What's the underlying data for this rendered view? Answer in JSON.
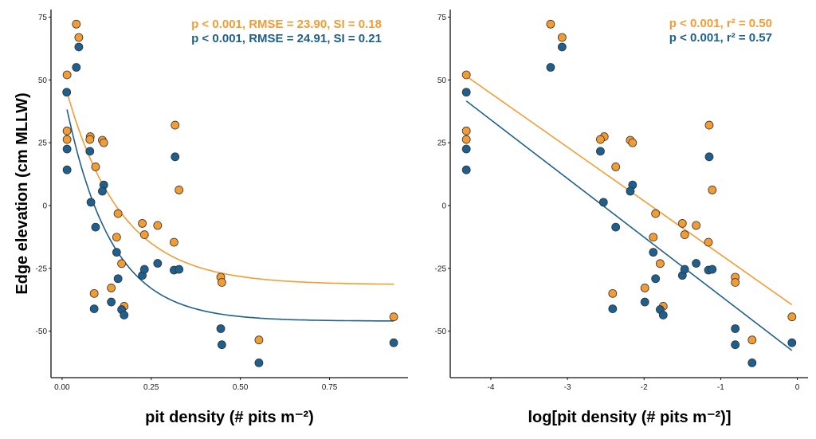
{
  "colors": {
    "orange": "#F39C34",
    "blue": "#1D5F8E",
    "outline": "#333333"
  },
  "chart_data": [
    {
      "type": "scatter",
      "xlabel": "pit density (# pits m⁻²)",
      "ylabel": "Edge elevation (cm MLLW)",
      "xlim": [
        -0.031,
        0.97
      ],
      "ylim": [
        -68.5,
        78
      ],
      "xticks": [
        0,
        0.25,
        0.5,
        0.75
      ],
      "xtick_labels": [
        "0.00",
        "0.25",
        "0.50",
        "0.75"
      ],
      "yticks": [
        -50,
        -25,
        0,
        25,
        50,
        75
      ],
      "ytick_labels": [
        "-50",
        "-25",
        "0",
        "25",
        "50",
        "75"
      ],
      "grid": false,
      "annotations": [
        "p < 0.001, RMSE = 23.90, SI = 0.18",
        "p < 0.001, RMSE = 24.91, SI = 0.21"
      ],
      "series": [
        {
          "color": "orange",
          "x": [
            0.04,
            0.047,
            0.014,
            0.014,
            0.014,
            0.079,
            0.078,
            0.113,
            0.117,
            0.094,
            0.317,
            0.328,
            0.157,
            0.225,
            0.268,
            0.231,
            0.153,
            0.314,
            0.167,
            0.138,
            0.09,
            0.174,
            0.445,
            0.448,
            0.552,
            0.93
          ],
          "y": [
            72.2,
            66.9,
            52,
            29.7,
            26.3,
            27.4,
            26.3,
            26.0,
            25,
            15.4,
            32,
            6.2,
            -3.2,
            -7.1,
            -7.9,
            -11.6,
            -12.6,
            -14.6,
            -23.1,
            -32.8,
            -35.0,
            -40.1,
            -28.5,
            -30.6,
            -53.5,
            -44.3
          ],
          "fit": {
            "model": "exponential decay",
            "asymptote": -31.5,
            "amplitude": 83.8,
            "rate": 6.5,
            "x_range": [
              0.014,
              0.93
            ]
          }
        },
        {
          "color": "blue",
          "x": [
            0.047,
            0.04,
            0.013,
            0.014,
            0.014,
            0.078,
            0.117,
            0.113,
            0.081,
            0.094,
            0.317,
            0.153,
            0.157,
            0.225,
            0.231,
            0.268,
            0.314,
            0.328,
            0.138,
            0.09,
            0.167,
            0.174,
            0.445,
            0.448,
            0.552,
            0.93
          ],
          "y": [
            63.1,
            55.0,
            45.1,
            22.5,
            14.2,
            21.6,
            8.2,
            5.7,
            1.3,
            -8.6,
            19.4,
            -18.6,
            -29.1,
            -27.8,
            -25.4,
            -23.0,
            -25.7,
            -25.4,
            -38.4,
            -41.1,
            -41.4,
            -43.6,
            -49.0,
            -55.4,
            -62.6,
            -54.6
          ],
          "fit": {
            "model": "exponential decay",
            "asymptote": -46,
            "amplitude": 94.1,
            "rate": 7.9,
            "x_range": [
              0.014,
              0.93
            ]
          }
        }
      ]
    },
    {
      "type": "scatter",
      "xlabel": "log[pit density (# pits m⁻²)]",
      "ylabel": "",
      "xlim": [
        -4.53,
        0.14
      ],
      "ylim": [
        -68.5,
        78
      ],
      "xticks": [
        -4,
        -3,
        -2,
        -1,
        0
      ],
      "xtick_labels": [
        "-4",
        "-3",
        "-2",
        "-1",
        "0"
      ],
      "yticks": [
        -50,
        -25,
        0,
        25,
        50,
        75
      ],
      "ytick_labels": [
        "-50",
        "-25",
        "0",
        "25",
        "50",
        "75"
      ],
      "grid": false,
      "annotations": [
        "p < 0.001, r² = 0.50",
        "p < 0.001, r² = 0.57"
      ],
      "series": [
        {
          "color": "orange",
          "x": [
            -3.22,
            -3.07,
            -4.32,
            -4.32,
            -4.32,
            -2.52,
            -2.57,
            -2.18,
            -2.15,
            -2.37,
            -1.15,
            -1.11,
            -1.85,
            -1.5,
            -1.32,
            -1.47,
            -1.88,
            -1.16,
            -1.79,
            -1.99,
            -2.41,
            -1.75,
            -0.81,
            -0.81,
            -0.59,
            -0.07
          ],
          "y": [
            72.2,
            66.9,
            52,
            29.7,
            26.3,
            27.4,
            26.3,
            26.0,
            25,
            15.4,
            32,
            6.2,
            -3.2,
            -7.1,
            -7.9,
            -11.6,
            -12.6,
            -14.6,
            -23.1,
            -32.8,
            -35.0,
            -40.1,
            -28.5,
            -30.6,
            -53.5,
            -44.3
          ],
          "fit": {
            "model": "linear",
            "x_range": [
              -4.32,
              -0.07
            ],
            "y_at_ends": [
              51.5,
              -39.5
            ]
          }
        },
        {
          "color": "blue",
          "x": [
            -3.07,
            -3.22,
            -4.32,
            -4.32,
            -4.32,
            -2.57,
            -2.15,
            -2.18,
            -2.53,
            -2.37,
            -1.15,
            -1.88,
            -1.85,
            -1.5,
            -1.47,
            -1.32,
            -1.16,
            -1.11,
            -1.99,
            -2.41,
            -1.79,
            -1.75,
            -0.81,
            -0.81,
            -0.59,
            -0.07
          ],
          "y": [
            63.1,
            55.0,
            45.1,
            22.5,
            14.2,
            21.6,
            8.2,
            5.7,
            1.3,
            -8.6,
            19.4,
            -18.6,
            -29.1,
            -27.8,
            -25.4,
            -23.0,
            -25.7,
            -25.4,
            -38.4,
            -41.1,
            -41.4,
            -43.6,
            -49.0,
            -55.4,
            -62.6,
            -54.6
          ],
          "fit": {
            "model": "linear",
            "x_range": [
              -4.32,
              -0.07
            ],
            "y_at_ends": [
              41.6,
              -57.7
            ]
          }
        }
      ]
    }
  ]
}
